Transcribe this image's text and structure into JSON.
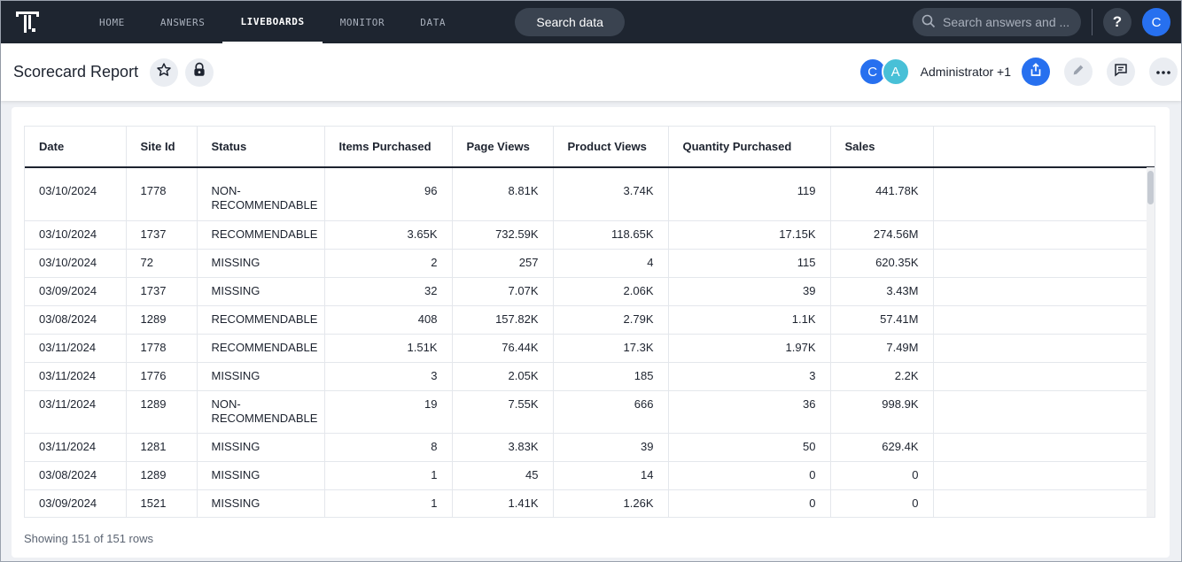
{
  "nav": {
    "items": [
      {
        "label": "HOME"
      },
      {
        "label": "ANSWERS"
      },
      {
        "label": "LIVEBOARDS"
      },
      {
        "label": "MONITOR"
      },
      {
        "label": "DATA"
      }
    ],
    "active": "LIVEBOARDS",
    "search_data_label": "Search data",
    "search_placeholder": "Search answers and ...",
    "help_label": "?",
    "user_initial": "C"
  },
  "header": {
    "title": "Scorecard Report",
    "owners": [
      {
        "initial": "C"
      },
      {
        "initial": "A"
      }
    ],
    "owners_label": "Administrator +1"
  },
  "table": {
    "columns": [
      "Date",
      "Site Id",
      "Status",
      "Items Purchased",
      "Page Views",
      "Product Views",
      "Quantity Purchased",
      "Sales"
    ],
    "rows": [
      [
        "03/10/2024",
        "1778",
        "NON-RECOMMENDABLE",
        "96",
        "8.81K",
        "3.74K",
        "119",
        "441.78K"
      ],
      [
        "03/10/2024",
        "1737",
        "RECOMMENDABLE",
        "3.65K",
        "732.59K",
        "118.65K",
        "17.15K",
        "274.56M"
      ],
      [
        "03/10/2024",
        "72",
        "MISSING",
        "2",
        "257",
        "4",
        "115",
        "620.35K"
      ],
      [
        "03/09/2024",
        "1737",
        "MISSING",
        "32",
        "7.07K",
        "2.06K",
        "39",
        "3.43M"
      ],
      [
        "03/08/2024",
        "1289",
        "RECOMMENDABLE",
        "408",
        "157.82K",
        "2.79K",
        "1.1K",
        "57.41M"
      ],
      [
        "03/11/2024",
        "1778",
        "RECOMMENDABLE",
        "1.51K",
        "76.44K",
        "17.3K",
        "1.97K",
        "7.49M"
      ],
      [
        "03/11/2024",
        "1776",
        "MISSING",
        "3",
        "2.05K",
        "185",
        "3",
        "2.2K"
      ],
      [
        "03/11/2024",
        "1289",
        "NON-RECOMMENDABLE",
        "19",
        "7.55K",
        "666",
        "36",
        "998.9K"
      ],
      [
        "03/11/2024",
        "1281",
        "MISSING",
        "8",
        "3.83K",
        "39",
        "50",
        "629.4K"
      ],
      [
        "03/08/2024",
        "1289",
        "MISSING",
        "1",
        "45",
        "14",
        "0",
        "0"
      ],
      [
        "03/09/2024",
        "1521",
        "MISSING",
        "1",
        "1.41K",
        "1.26K",
        "0",
        "0"
      ]
    ],
    "footer": "Showing 151 of 151 rows"
  }
}
